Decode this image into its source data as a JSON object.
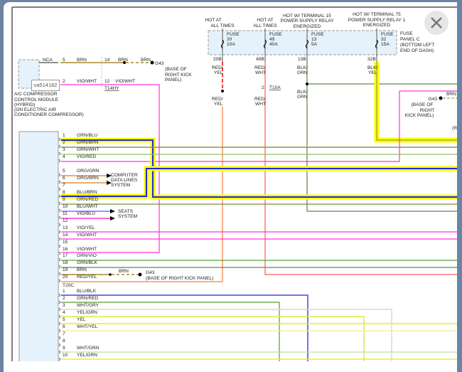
{
  "viewer": {
    "close_icon": "close-x-icon",
    "tooltip": "va514182"
  },
  "fuse_panel": {
    "sources": [
      "HOT AT\nALL TIMES",
      "HOT AT\nALL TIMES",
      "HOT W/ TERMINAL 15\nPOWER SUPPLY RELAY\nENERGIZED",
      "HOT W/ TERMINAL 75\nPOWER SUPPLY RELAY 1\nENERGIZED"
    ],
    "src1a": "HOT AT",
    "src1b": "ALL TIMES",
    "src2a": "HOT AT",
    "src2b": "ALL TIMES",
    "src3a": "HOT W/ TERMINAL 15",
    "src3b": "POWER SUPPLY RELAY",
    "src3c": "ENERGIZED",
    "src4a": "HOT W/ TERMINAL 75",
    "src4b": "POWER SUPPLY RELAY 1",
    "src4c": "ENERGIZED",
    "fuses": [
      {
        "label": "FUSE",
        "num": "20",
        "rating": "10A",
        "pin": "20B",
        "wire1": "RED/",
        "wire2": "YEL"
      },
      {
        "label": "FUSE",
        "num": "49",
        "rating": "40A",
        "pin": "49B",
        "wire1": "RED/",
        "wire2": "WHT"
      },
      {
        "label": "FUSE",
        "num": "13",
        "rating": "5A",
        "pin": "13B",
        "wire1": "BLK/",
        "wire2": "GRN"
      },
      {
        "label": "FUSE",
        "num": "32",
        "rating": "15A",
        "pin": "32B",
        "wire1": "BLK/",
        "wire2": "YEL"
      }
    ],
    "name1": "FUSE",
    "name2": "PANEL C",
    "name3": "(BOTTOM LEFT",
    "name4": "END OF DASH)"
  },
  "t10a": {
    "pin": "2",
    "name": "T10A"
  },
  "ac_module": {
    "l1": "A/C COMPRESSOR",
    "l2": "CONTROL MODULE",
    "l3": "(HYBRID)",
    "l4": "(ON ELECTRIC AIR",
    "l5": "CONDITIONER COMPRESSOR)",
    "w1": {
      "left": "NCA",
      "pin": "5",
      "color": "BRN",
      "pin2": "14",
      "color2": "BRN",
      "color3": "BRN"
    },
    "w2": {
      "left": "NCA",
      "pin": "2",
      "color": "VIO/WHT",
      "pin2": "12",
      "color2": "VIO/WHT"
    },
    "connector": "T14HY"
  },
  "grounds": {
    "g1": {
      "name": "G43",
      "l1": "(BASE OF",
      "l2": "RIGHT KICK",
      "l3": "PANEL)"
    },
    "g2": {
      "name": "G43",
      "l1": "(BASE OF",
      "l2": "RIGHT",
      "l3": "KICK PANEL)",
      "wire": "BRN"
    },
    "g3": {
      "name": "G43",
      "desc": "(BASE OF RIGHT KICK PANEL)",
      "wire": "BRN"
    },
    "partial": "(RI"
  },
  "connector_a": {
    "pins": [
      {
        "n": "1",
        "w": "GRN/BLU"
      },
      {
        "n": "2",
        "w": "GRN/BRN"
      },
      {
        "n": "3",
        "w": "GRN/WHT"
      },
      {
        "n": "4",
        "w": "VIO/RED"
      },
      {
        "n": "5",
        "w": "ORG/GRN"
      },
      {
        "n": "6",
        "w": "ORG/BRN"
      },
      {
        "n": "7",
        "w": ""
      },
      {
        "n": "8",
        "w": "BLU/BRN"
      },
      {
        "n": "9",
        "w": "GRN/RED"
      },
      {
        "n": "10",
        "w": "BLU/WHT"
      },
      {
        "n": "11",
        "w": "VIO/BLU"
      },
      {
        "n": "12",
        "w": ""
      },
      {
        "n": "13",
        "w": "VIO/YEL"
      },
      {
        "n": "14",
        "w": "VIO/WHT"
      },
      {
        "n": "15",
        "w": ""
      },
      {
        "n": "16",
        "w": "VIO/WHT"
      },
      {
        "n": "17",
        "w": "GRN/VIO"
      },
      {
        "n": "18",
        "w": "GRN/BLK"
      },
      {
        "n": "19",
        "w": "BRN"
      },
      {
        "n": "20",
        "w": "RED/YEL"
      }
    ],
    "cdl1": "COMPUTER",
    "cdl2": "DATA LINES",
    "cdl3": "SYSTEM",
    "seats1": "SEATS",
    "seats2": "SYSTEM"
  },
  "connector_b": {
    "name": "T20C",
    "pins": [
      {
        "n": "1",
        "w": "BLU/BLK"
      },
      {
        "n": "2",
        "w": "GRN/RED"
      },
      {
        "n": "3",
        "w": "WHT/GRY"
      },
      {
        "n": "4",
        "w": "YEL/GRN"
      },
      {
        "n": "5",
        "w": "YEL"
      },
      {
        "n": "6",
        "w": "WHT/YEL"
      },
      {
        "n": "7",
        "w": ""
      },
      {
        "n": "8",
        "w": ""
      },
      {
        "n": "9",
        "w": "WHT/GRN"
      },
      {
        "n": "10",
        "w": "YEL/GRN"
      }
    ]
  },
  "colors": {
    "highlight": "#ffff00",
    "frame": "#6b84a3",
    "panel_fill": "#e6f2fb"
  }
}
